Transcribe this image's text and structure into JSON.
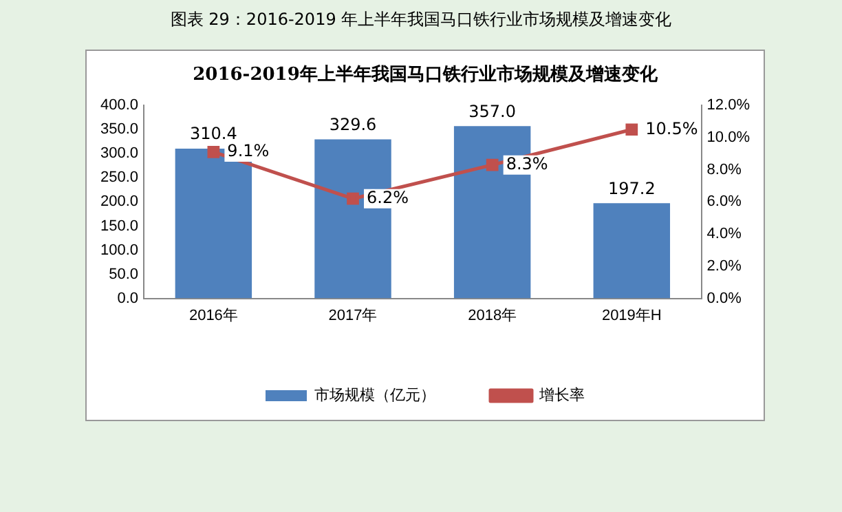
{
  "chart_data": {
    "type": "bar",
    "title": "2016-2019年上半年我国马口铁行业市场规模及增速变化",
    "annotations": [
      "图表 29：2016-2019 年上半年我国马口铁行业市场规模及增速变化"
    ],
    "categories": [
      "2016年",
      "2017年",
      "2018年",
      "2019年H"
    ],
    "series": [
      {
        "name": "市场规模（亿元）",
        "color": "#4f81bd",
        "values": [
          310.4,
          329.6,
          357.0,
          197.2
        ],
        "value_labels": [
          "310.4",
          "329.6",
          "357.0",
          "197.2"
        ]
      },
      {
        "name": "增长率",
        "type": "line",
        "axis": "y2",
        "color": "#c0504d",
        "values": [
          9.1,
          6.2,
          8.3,
          10.5
        ],
        "value_labels": [
          "9.1%",
          "6.2%",
          "8.3%",
          "10.5%"
        ]
      }
    ],
    "ylim": [
      0,
      400
    ],
    "yticks": [
      {
        "value": 0,
        "label": "0.0"
      },
      {
        "value": 50,
        "label": "50.0"
      },
      {
        "value": 100,
        "label": "100.0"
      },
      {
        "value": 150,
        "label": "150.0"
      },
      {
        "value": 200,
        "label": "200.0"
      },
      {
        "value": 250,
        "label": "250.0"
      },
      {
        "value": 300,
        "label": "300.0"
      },
      {
        "value": 350,
        "label": "350.0"
      },
      {
        "value": 400,
        "label": "400.0"
      }
    ],
    "y2lim": [
      0,
      12
    ],
    "y2ticks": [
      {
        "value": 0,
        "label": "0.0%"
      },
      {
        "value": 2,
        "label": "2.0%"
      },
      {
        "value": 4,
        "label": "4.0%"
      },
      {
        "value": 6,
        "label": "6.0%"
      },
      {
        "value": 8,
        "label": "8.0%"
      },
      {
        "value": 10,
        "label": "10.0%"
      },
      {
        "value": 12,
        "label": "12.0%"
      }
    ],
    "grid": false,
    "legend": "bottom",
    "marker": "square",
    "line_style": "solid"
  }
}
